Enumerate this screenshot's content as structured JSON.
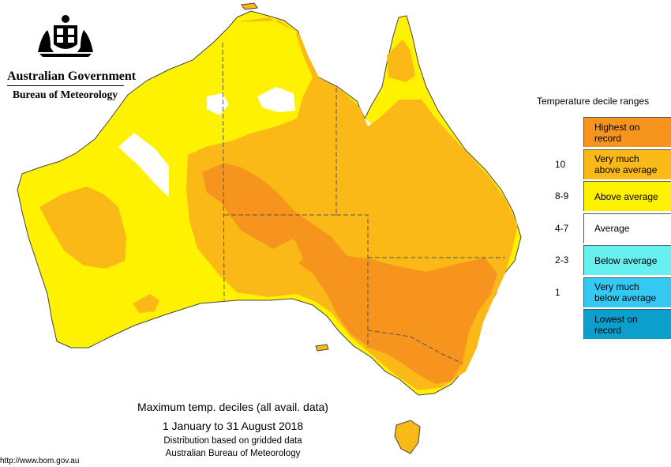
{
  "logo": {
    "government": "Australian Government",
    "bureau": "Bureau of Meteorology"
  },
  "legend": {
    "title": "Temperature decile ranges",
    "items": [
      {
        "label": "Highest on\nrecord",
        "rank": "",
        "color": "#f7941d"
      },
      {
        "label": "Very much\nabove average",
        "rank": "10",
        "color": "#fbb917"
      },
      {
        "label": "Above average",
        "rank": "8-9",
        "color": "#fff200"
      },
      {
        "label": "Average",
        "rank": "4-7",
        "color": "#ffffff"
      },
      {
        "label": "Below average",
        "rank": "2-3",
        "color": "#66f0f0"
      },
      {
        "label": "Very much\nbelow average",
        "rank": "1",
        "color": "#33c9f2"
      },
      {
        "label": "Lowest on\nrecord",
        "rank": "",
        "color": "#0b9fce"
      }
    ]
  },
  "caption": {
    "title": "Maximum temp. deciles (all avail. data)",
    "period": "1 January to 31 August 2018",
    "note1": "Distribution based on gridded data",
    "note2": "Australian Bureau of Meteorology"
  },
  "source_url": "http://www.bom.gov.au",
  "map": {
    "region": "Australia",
    "colors": {
      "above_average": "#fff200",
      "very_much_above": "#fbb917",
      "highest_on_record": "#f7941d",
      "average": "#ffffff",
      "border": "#555555"
    }
  }
}
